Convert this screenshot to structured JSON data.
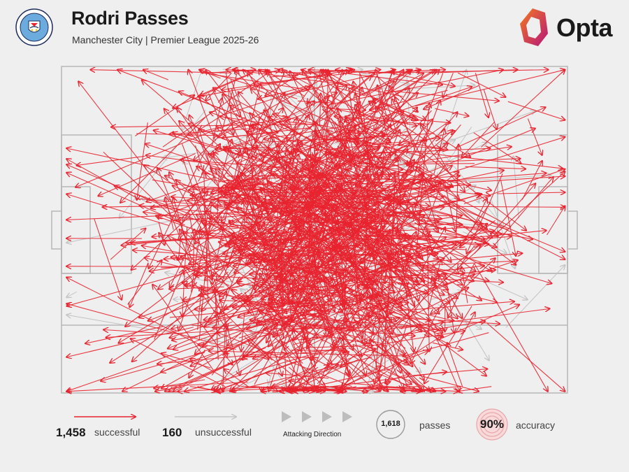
{
  "header": {
    "title": "Rodri Passes",
    "subtitle": "Manchester City | Premier League 2025-26",
    "crest_text_top": "MANCHESTER",
    "crest_text_bottom": "CITY",
    "brand": "Opta"
  },
  "colors": {
    "successful": "#e8232f",
    "unsuccessful": "#c4c4c4",
    "pitch_lines": "#b7b7b7",
    "crest_blue": "#6cabdd",
    "brand_gradient": [
      "#f47b20",
      "#b5157a"
    ]
  },
  "legend": {
    "successful_count": "1,458",
    "successful_label": "successful",
    "unsuccessful_count": "160",
    "unsuccessful_label": "unsuccessful",
    "direction_label": "Attacking Direction",
    "passes_count": "1,618",
    "passes_label": "passes",
    "accuracy_value": "90%",
    "accuracy_label": "accuracy"
  },
  "chart_data": {
    "type": "scatter",
    "subtype": "pass-map",
    "pitch_length_units": 100,
    "pitch_width_units": 100,
    "attacking_direction": "left-to-right",
    "series": [
      {
        "name": "successful",
        "count": 1458
      },
      {
        "name": "unsuccessful",
        "count": 160
      }
    ],
    "total_passes": 1618,
    "accuracy_pct": 90
  }
}
